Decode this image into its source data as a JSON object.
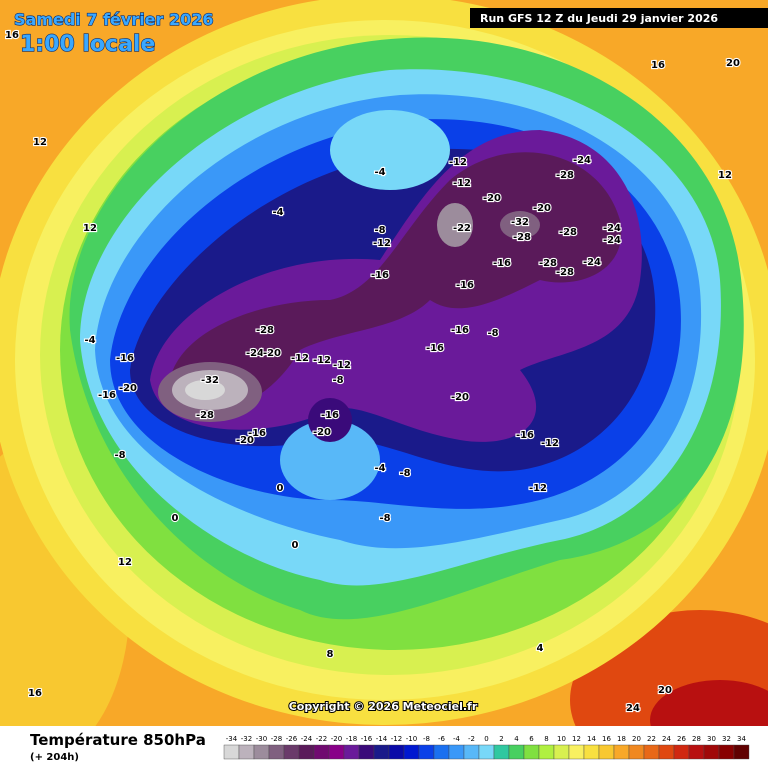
{
  "header": {
    "date": "Samedi 7 février 2026",
    "time": "1:00 locale",
    "run": "Run GFS 12 Z du Jeudi 29 janvier 2026"
  },
  "copyright": "Copyright © 2026 Meteociel.fr",
  "footer": {
    "title": "Température 850hPa",
    "lead": "(+ 204h)"
  },
  "scale": {
    "ticks": [
      -34,
      -32,
      -30,
      -28,
      -26,
      -24,
      -22,
      -20,
      -18,
      -16,
      -14,
      -12,
      -10,
      -8,
      -6,
      -4,
      -2,
      0,
      2,
      4,
      6,
      8,
      10,
      12,
      14,
      16,
      18,
      20,
      22,
      24,
      26,
      28,
      30,
      32,
      34
    ],
    "colors": [
      "#d8d8d8",
      "#bcb2bc",
      "#9c8c9c",
      "#806080",
      "#6a3a6a",
      "#5a1a5a",
      "#700a70",
      "#880088",
      "#6a1a9a",
      "#3a0a7a",
      "#1a1a8a",
      "#0a0aa8",
      "#0018d0",
      "#0a40e8",
      "#1a70f0",
      "#3a98f8",
      "#58b8f8",
      "#78d8f8",
      "#30c8a0",
      "#48d060",
      "#80e040",
      "#b0f040",
      "#d8f050",
      "#f8f060",
      "#f8e040",
      "#f8c830",
      "#f8a828",
      "#f08820",
      "#e86818",
      "#e04810",
      "#d02810",
      "#b81010",
      "#a00808",
      "#880000",
      "#600000"
    ]
  },
  "map": {
    "labels": [
      -32,
      -28,
      -28,
      -24,
      -20,
      -16,
      -20,
      -16,
      -8,
      -12,
      -12,
      -12,
      -8,
      -16,
      -20,
      -20,
      -16,
      -16,
      -16,
      -16,
      -12,
      -8,
      -12,
      -12,
      -20,
      -22,
      -32,
      -28,
      -20,
      -28,
      -24,
      -28,
      -28,
      -24,
      -24,
      -24,
      -28,
      -16,
      -8,
      -16,
      -20,
      -16,
      -12,
      -12,
      -8,
      -4,
      -8,
      0,
      0,
      0,
      12,
      12,
      16,
      20,
      16,
      12,
      20,
      24,
      16,
      8,
      4,
      12,
      -4,
      -4,
      -4
    ]
  }
}
